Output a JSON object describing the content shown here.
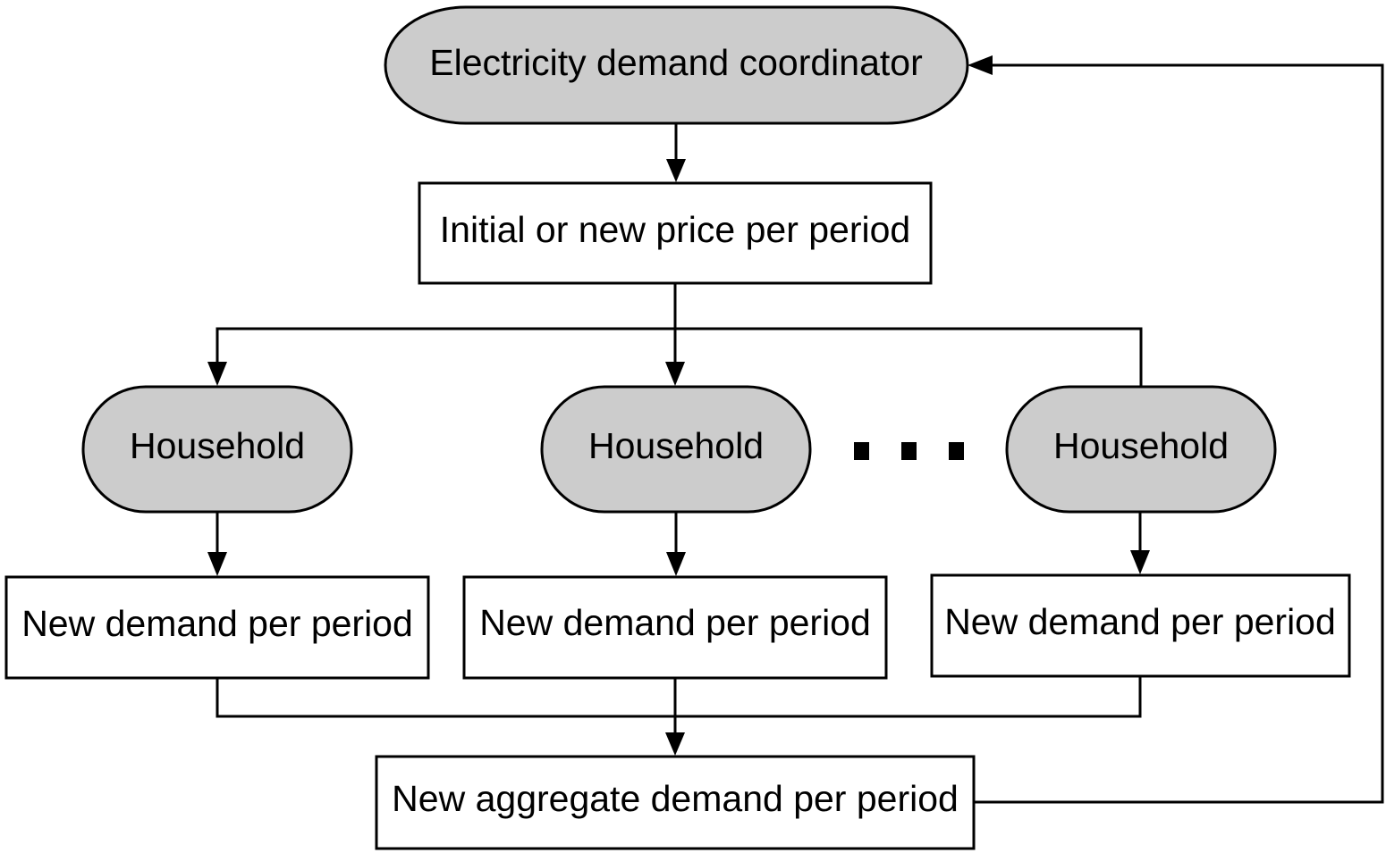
{
  "colors": {
    "oval_fill": "#cccccc",
    "box_fill": "#ffffff",
    "stroke": "#000000"
  },
  "nodes": {
    "coordinator": "Electricity demand coordinator",
    "price": "Initial or new price per period",
    "households": [
      "Household",
      "Household",
      "Household"
    ],
    "demands": [
      "New demand per period",
      "New demand per period",
      "New demand per period"
    ],
    "aggregate": "New aggregate demand per period"
  },
  "ellipsis_icon": "three-square-dots"
}
